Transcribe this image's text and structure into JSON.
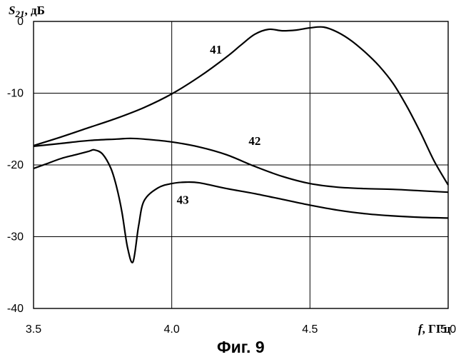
{
  "caption": "Фиг. 9",
  "chart_data": {
    "type": "line",
    "title": "",
    "ylabel_main": "S",
    "ylabel_sub": "21",
    "ylabel_unit": ", дБ",
    "xlabel_main": "f",
    "xlabel_unit": ", ГГц",
    "xlim": [
      3.5,
      5.0
    ],
    "ylim": [
      -40,
      0
    ],
    "xticks": [
      "3.5",
      "4.0",
      "4.5",
      "5.0"
    ],
    "yticks": [
      "0",
      "-10",
      "-20",
      "-30",
      "-40"
    ],
    "grid": true,
    "series": [
      {
        "name": "41",
        "label_at": [
          4.16,
          -4.5
        ],
        "x": [
          3.5,
          3.6,
          3.7,
          3.8,
          3.9,
          4.0,
          4.1,
          4.2,
          4.25,
          4.3,
          4.35,
          4.4,
          4.45,
          4.5,
          4.55,
          4.6,
          4.65,
          4.7,
          4.75,
          4.8,
          4.85,
          4.9,
          4.95,
          5.0
        ],
        "y": [
          -17.3,
          -16.1,
          -14.8,
          -13.5,
          -12.0,
          -10.1,
          -7.7,
          -4.9,
          -3.3,
          -1.8,
          -1.1,
          -1.3,
          -1.2,
          -0.9,
          -0.8,
          -1.5,
          -2.7,
          -4.3,
          -6.2,
          -8.6,
          -11.8,
          -15.5,
          -19.5,
          -22.8
        ]
      },
      {
        "name": "42",
        "label_at": [
          4.3,
          -17.2
        ],
        "x": [
          3.5,
          3.6,
          3.7,
          3.8,
          3.85,
          3.9,
          4.0,
          4.1,
          4.2,
          4.3,
          4.4,
          4.5,
          4.6,
          4.7,
          4.8,
          4.9,
          5.0
        ],
        "y": [
          -17.4,
          -17.0,
          -16.6,
          -16.4,
          -16.3,
          -16.4,
          -16.8,
          -17.5,
          -18.6,
          -20.2,
          -21.6,
          -22.6,
          -23.1,
          -23.3,
          -23.4,
          -23.6,
          -23.8
        ]
      },
      {
        "name": "43",
        "label_at": [
          4.04,
          -25.4
        ],
        "x": [
          3.5,
          3.55,
          3.6,
          3.65,
          3.7,
          3.72,
          3.75,
          3.78,
          3.8,
          3.82,
          3.84,
          3.86,
          3.88,
          3.9,
          3.95,
          4.0,
          4.05,
          4.1,
          4.2,
          4.3,
          4.4,
          4.5,
          4.6,
          4.7,
          4.8,
          4.9,
          5.0
        ],
        "y": [
          -20.5,
          -19.8,
          -19.1,
          -18.6,
          -18.1,
          -17.9,
          -18.5,
          -20.5,
          -23.0,
          -26.6,
          -31.5,
          -33.5,
          -28.5,
          -25.0,
          -23.2,
          -22.6,
          -22.4,
          -22.5,
          -23.3,
          -24.0,
          -24.8,
          -25.6,
          -26.3,
          -26.8,
          -27.1,
          -27.3,
          -27.4
        ]
      }
    ]
  }
}
